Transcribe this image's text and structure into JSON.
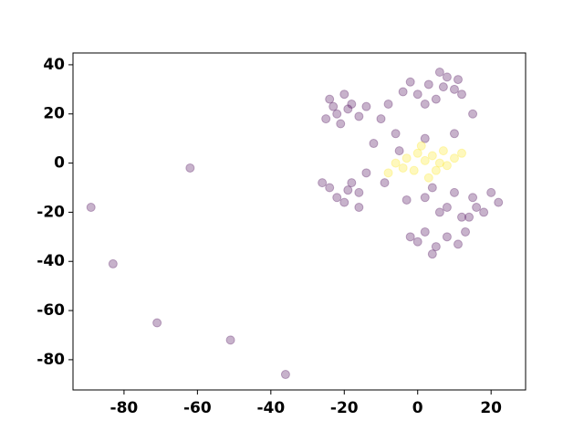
{
  "chart_data": {
    "type": "scatter",
    "xlim": [
      -93.9,
      29.4
    ],
    "ylim": [
      -92.3,
      44.8
    ],
    "xticks": [
      -80,
      -60,
      -40,
      -20,
      0,
      20
    ],
    "yticks": [
      -80,
      -60,
      -40,
      -20,
      0,
      20,
      40
    ],
    "series": [
      {
        "color": "#440154",
        "x": [
          -24,
          -22,
          -18,
          -16,
          -20,
          -25,
          -14,
          -21,
          -19,
          -23,
          -2,
          0,
          3,
          5,
          8,
          10,
          6,
          2,
          12,
          -4,
          7,
          11,
          -10,
          -6,
          -8,
          -12,
          -5,
          2,
          10,
          15,
          -14,
          -9,
          -3,
          -16,
          -24,
          -22,
          -18,
          -16,
          -20,
          -26,
          -19,
          2,
          6,
          10,
          8,
          12,
          4,
          15,
          18,
          20,
          22,
          16,
          14,
          -2,
          2,
          5,
          8,
          11,
          4,
          0,
          13,
          -89,
          -83,
          -71,
          -62,
          -51,
          -36
        ],
        "values": [
          26,
          20,
          24,
          19,
          28,
          18,
          23,
          16,
          22,
          23,
          33,
          28,
          32,
          26,
          35,
          30,
          37,
          24,
          28,
          29,
          31,
          34,
          18,
          12,
          24,
          8,
          5,
          10,
          12,
          20,
          -4,
          -8,
          -15,
          -18,
          -10,
          -14,
          -8,
          -12,
          -16,
          -8,
          -11,
          -14,
          -20,
          -12,
          -18,
          -22,
          -10,
          -14,
          -20,
          -12,
          -16,
          -18,
          -22,
          -30,
          -28,
          -34,
          -30,
          -33,
          -37,
          -32,
          -28,
          -18,
          -41,
          -65,
          -2,
          -72,
          -86
        ]
      },
      {
        "color": "#fde725",
        "x": [
          -6,
          -3,
          -1,
          0,
          -4,
          2,
          4,
          6,
          8,
          7,
          10,
          5,
          -8,
          1,
          12,
          3
        ],
        "values": [
          0,
          2,
          -3,
          4,
          -2,
          1,
          3,
          0,
          -1,
          5,
          2,
          -3,
          -4,
          7,
          4,
          -6
        ]
      }
    ]
  }
}
